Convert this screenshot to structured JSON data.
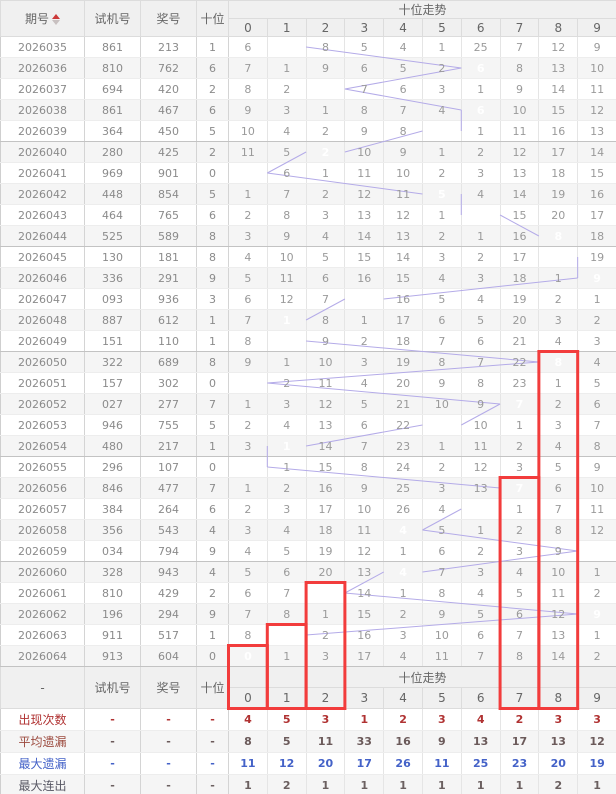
{
  "colors": {
    "highlight": "#7b68ee",
    "trend_line": "#b4abe8",
    "red_box": "#f23c3c",
    "count_red": "#b03232",
    "miss_blue": "#4462c8",
    "sort_red": "#cc3a3a"
  },
  "header": {
    "col_issue": "期号",
    "col_test": "试机号",
    "col_prize": "奖号",
    "col_tens": "十位",
    "trend_title": "十位走势",
    "digits": [
      "0",
      "1",
      "2",
      "3",
      "4",
      "5",
      "6",
      "7",
      "8",
      "9"
    ],
    "sort_icon": "sort-asc-desc"
  },
  "rows": [
    {
      "issue": "2026035",
      "test": "861",
      "prize": "213",
      "tens": 1,
      "trend": [
        6,
        1,
        8,
        5,
        4,
        1,
        25,
        7,
        12,
        9
      ]
    },
    {
      "issue": "2026036",
      "test": "810",
      "prize": "762",
      "tens": 6,
      "trend": [
        7,
        1,
        9,
        6,
        5,
        2,
        6,
        8,
        13,
        10
      ]
    },
    {
      "issue": "2026037",
      "test": "694",
      "prize": "420",
      "tens": 2,
      "trend": [
        8,
        2,
        2,
        7,
        6,
        3,
        1,
        9,
        14,
        11
      ]
    },
    {
      "issue": "2026038",
      "test": "861",
      "prize": "467",
      "tens": 6,
      "trend": [
        9,
        3,
        1,
        8,
        7,
        4,
        6,
        10,
        15,
        12
      ]
    },
    {
      "issue": "2026039",
      "test": "364",
      "prize": "450",
      "tens": 5,
      "trend": [
        10,
        4,
        2,
        9,
        8,
        5,
        1,
        11,
        16,
        13
      ]
    },
    {
      "issue": "2026040",
      "test": "280",
      "prize": "425",
      "tens": 2,
      "trend": [
        11,
        5,
        2,
        10,
        9,
        1,
        2,
        12,
        17,
        14
      ]
    },
    {
      "issue": "2026041",
      "test": "969",
      "prize": "901",
      "tens": 0,
      "trend": [
        0,
        6,
        1,
        11,
        10,
        2,
        3,
        13,
        18,
        15
      ]
    },
    {
      "issue": "2026042",
      "test": "448",
      "prize": "854",
      "tens": 5,
      "trend": [
        1,
        7,
        2,
        12,
        11,
        5,
        4,
        14,
        19,
        16
      ]
    },
    {
      "issue": "2026043",
      "test": "464",
      "prize": "765",
      "tens": 6,
      "trend": [
        2,
        8,
        3,
        13,
        12,
        1,
        6,
        15,
        20,
        17
      ]
    },
    {
      "issue": "2026044",
      "test": "525",
      "prize": "589",
      "tens": 8,
      "trend": [
        3,
        9,
        4,
        14,
        13,
        2,
        1,
        16,
        8,
        18
      ]
    },
    {
      "issue": "2026045",
      "test": "130",
      "prize": "181",
      "tens": 8,
      "trend": [
        4,
        10,
        5,
        15,
        14,
        3,
        2,
        17,
        8,
        19
      ]
    },
    {
      "issue": "2026046",
      "test": "336",
      "prize": "291",
      "tens": 9,
      "trend": [
        5,
        11,
        6,
        16,
        15,
        4,
        3,
        18,
        1,
        9
      ]
    },
    {
      "issue": "2026047",
      "test": "093",
      "prize": "936",
      "tens": 3,
      "trend": [
        6,
        12,
        7,
        3,
        16,
        5,
        4,
        19,
        2,
        1
      ]
    },
    {
      "issue": "2026048",
      "test": "887",
      "prize": "612",
      "tens": 1,
      "trend": [
        7,
        1,
        8,
        1,
        17,
        6,
        5,
        20,
        3,
        2
      ]
    },
    {
      "issue": "2026049",
      "test": "151",
      "prize": "110",
      "tens": 1,
      "trend": [
        8,
        1,
        9,
        2,
        18,
        7,
        6,
        21,
        4,
        3
      ]
    },
    {
      "issue": "2026050",
      "test": "322",
      "prize": "689",
      "tens": 8,
      "trend": [
        9,
        1,
        10,
        3,
        19,
        8,
        7,
        22,
        8,
        4
      ]
    },
    {
      "issue": "2026051",
      "test": "157",
      "prize": "302",
      "tens": 0,
      "trend": [
        0,
        2,
        11,
        4,
        20,
        9,
        8,
        23,
        1,
        5
      ]
    },
    {
      "issue": "2026052",
      "test": "027",
      "prize": "277",
      "tens": 7,
      "trend": [
        1,
        3,
        12,
        5,
        21,
        10,
        9,
        7,
        2,
        6
      ]
    },
    {
      "issue": "2026053",
      "test": "946",
      "prize": "755",
      "tens": 5,
      "trend": [
        2,
        4,
        13,
        6,
        22,
        5,
        10,
        1,
        3,
        7
      ]
    },
    {
      "issue": "2026054",
      "test": "480",
      "prize": "217",
      "tens": 1,
      "trend": [
        3,
        1,
        14,
        7,
        23,
        1,
        11,
        2,
        4,
        8
      ]
    },
    {
      "issue": "2026055",
      "test": "296",
      "prize": "107",
      "tens": 0,
      "trend": [
        0,
        1,
        15,
        8,
        24,
        2,
        12,
        3,
        5,
        9
      ]
    },
    {
      "issue": "2026056",
      "test": "846",
      "prize": "477",
      "tens": 7,
      "trend": [
        1,
        2,
        16,
        9,
        25,
        3,
        13,
        7,
        6,
        10
      ]
    },
    {
      "issue": "2026057",
      "test": "384",
      "prize": "264",
      "tens": 6,
      "trend": [
        2,
        3,
        17,
        10,
        26,
        4,
        6,
        1,
        7,
        11
      ]
    },
    {
      "issue": "2026058",
      "test": "356",
      "prize": "543",
      "tens": 4,
      "trend": [
        3,
        4,
        18,
        11,
        4,
        5,
        1,
        2,
        8,
        12
      ]
    },
    {
      "issue": "2026059",
      "test": "034",
      "prize": "794",
      "tens": 9,
      "trend": [
        4,
        5,
        19,
        12,
        1,
        6,
        2,
        3,
        9,
        9
      ]
    },
    {
      "issue": "2026060",
      "test": "328",
      "prize": "943",
      "tens": 4,
      "trend": [
        5,
        6,
        20,
        13,
        4,
        7,
        3,
        4,
        10,
        1
      ]
    },
    {
      "issue": "2026061",
      "test": "810",
      "prize": "429",
      "tens": 2,
      "trend": [
        6,
        7,
        2,
        14,
        1,
        8,
        4,
        5,
        11,
        2
      ]
    },
    {
      "issue": "2026062",
      "test": "196",
      "prize": "294",
      "tens": 9,
      "trend": [
        7,
        8,
        1,
        15,
        2,
        9,
        5,
        6,
        12,
        9
      ]
    },
    {
      "issue": "2026063",
      "test": "911",
      "prize": "517",
      "tens": 1,
      "trend": [
        8,
        1,
        2,
        16,
        3,
        10,
        6,
        7,
        13,
        1
      ]
    },
    {
      "issue": "2026064",
      "test": "913",
      "prize": "604",
      "tens": 0,
      "trend": [
        0,
        1,
        3,
        17,
        4,
        11,
        7,
        8,
        14,
        2
      ]
    }
  ],
  "footer_header": {
    "issue": "-",
    "test": "试机号",
    "prize": "奖号",
    "tens": "十位",
    "trend_title": "十位走势",
    "digits": [
      "0",
      "1",
      "2",
      "3",
      "4",
      "5",
      "6",
      "7",
      "8",
      "9"
    ]
  },
  "stats": {
    "dash": "-",
    "rows": [
      {
        "label": "出现次数",
        "values": [
          4,
          5,
          3,
          1,
          2,
          3,
          4,
          2,
          3,
          3
        ]
      },
      {
        "label": "平均遗漏",
        "values": [
          8,
          5,
          11,
          33,
          16,
          9,
          13,
          17,
          13,
          12
        ]
      },
      {
        "label": "最大遗漏",
        "values": [
          11,
          12,
          20,
          17,
          26,
          11,
          25,
          23,
          20,
          19
        ]
      },
      {
        "label": "最大连出",
        "values": [
          1,
          2,
          1,
          1,
          1,
          1,
          1,
          1,
          2,
          1
        ]
      }
    ]
  },
  "red_boxes": [
    {
      "digit": 0,
      "from_issue": "2026064"
    },
    {
      "digit": 1,
      "from_issue": "2026063"
    },
    {
      "digit": 2,
      "from_issue": "2026061"
    },
    {
      "digit": 7,
      "from_issue": "2026056"
    },
    {
      "digit": 8,
      "from_issue": "2026050"
    }
  ]
}
